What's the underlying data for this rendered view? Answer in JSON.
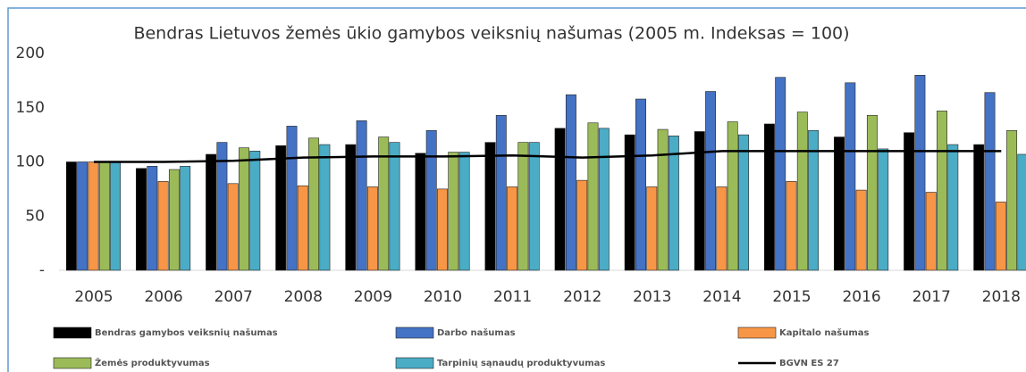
{
  "chart_data": {
    "type": "bar",
    "title": "Bendras Lietuvos žemės ūkio gamybos veiksnių našumas (2005 m. Indeksas = 100)",
    "categories": [
      "2005",
      "2006",
      "2007",
      "2008",
      "2009",
      "2010",
      "2011",
      "2012",
      "2013",
      "2014",
      "2015",
      "2016",
      "2017",
      "2018"
    ],
    "series": [
      {
        "name": "Bendras gamybos veiksnių našumas",
        "color": "#000000",
        "values": [
          100,
          94,
          107,
          115,
          116,
          108,
          118,
          131,
          125,
          128,
          135,
          123,
          127,
          116
        ]
      },
      {
        "name": "Darbo našumas",
        "color": "#4472c4",
        "values": [
          100,
          96,
          118,
          133,
          138,
          129,
          143,
          162,
          158,
          165,
          178,
          173,
          180,
          164
        ]
      },
      {
        "name": "Kapitalo našumas",
        "color": "#f79646",
        "values": [
          100,
          82,
          80,
          78,
          77,
          75,
          77,
          83,
          77,
          77,
          82,
          74,
          72,
          63
        ]
      },
      {
        "name": "Žemės produktyvumas",
        "color": "#9bbb59",
        "values": [
          100,
          93,
          113,
          122,
          123,
          109,
          118,
          136,
          130,
          137,
          146,
          143,
          147,
          129
        ]
      },
      {
        "name": "Tarpinių sąnaudų produktyvumas",
        "color": "#4bacc6",
        "values": [
          100,
          96,
          110,
          116,
          118,
          109,
          118,
          131,
          124,
          125,
          129,
          112,
          116,
          107
        ]
      },
      {
        "name": "BGVN ES 27",
        "color": "#000000",
        "type": "line",
        "values": [
          100,
          100,
          101,
          104,
          105,
          105,
          106,
          104,
          106,
          110,
          110,
          110,
          110,
          110
        ]
      }
    ],
    "ylim": [
      0,
      200
    ],
    "yticks": [
      {
        "value": 0,
        "label": "-"
      },
      50,
      100,
      150,
      200
    ]
  }
}
